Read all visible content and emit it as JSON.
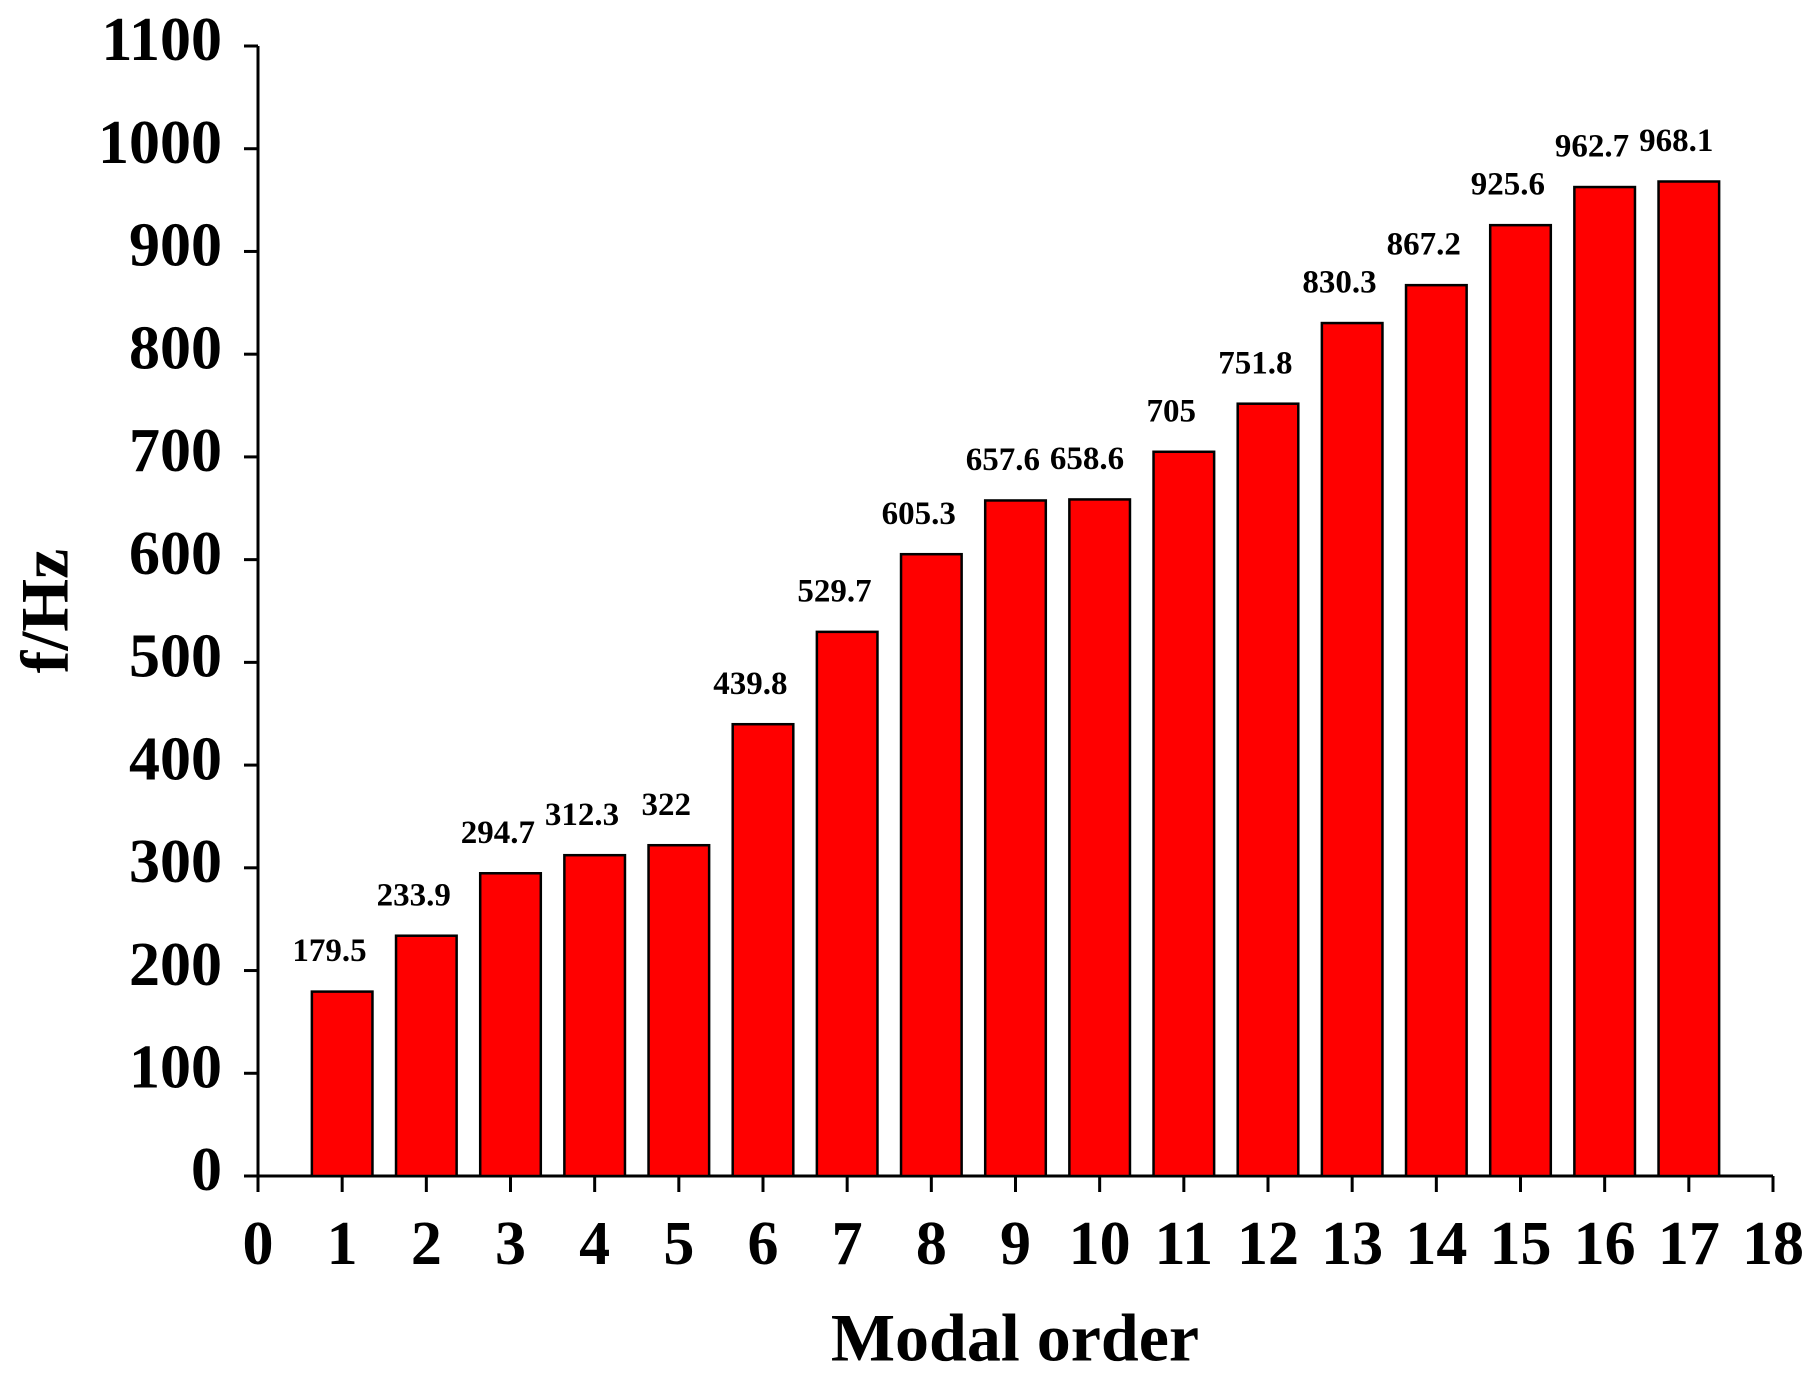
{
  "chart_data": {
    "type": "bar",
    "x_label": "Modal order",
    "y_label": "f/Hz",
    "x": [
      1,
      2,
      3,
      4,
      5,
      6,
      7,
      8,
      9,
      10,
      11,
      12,
      13,
      14,
      15,
      16,
      17
    ],
    "values": [
      179.5,
      233.9,
      294.7,
      312.3,
      322,
      439.8,
      529.7,
      605.3,
      657.6,
      658.6,
      705,
      751.8,
      830.3,
      867.2,
      925.6,
      962.7,
      968.1
    ],
    "color": "#ff0000",
    "xlim": [
      0,
      18
    ],
    "xticks": [
      0,
      1,
      2,
      3,
      4,
      5,
      6,
      7,
      8,
      9,
      10,
      11,
      12,
      13,
      14,
      15,
      16,
      17,
      18
    ],
    "ylim": [
      0,
      1100
    ],
    "yticks": [
      0,
      100,
      200,
      300,
      400,
      500,
      600,
      700,
      800,
      900,
      1000,
      1100
    ],
    "grid": false
  }
}
